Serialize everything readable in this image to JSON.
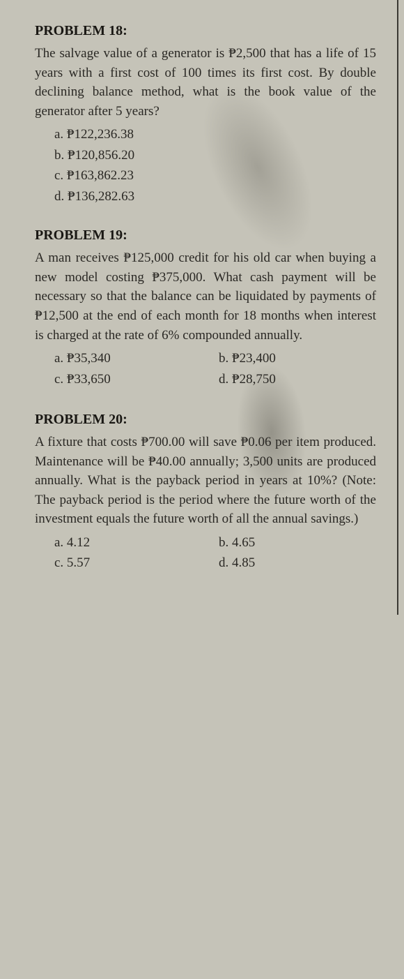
{
  "problems": [
    {
      "heading": "PROBLEM 18:",
      "text": "The salvage value of a generator is ₱2,500 that has a life of 15 years with a first cost of 100 times its first cost. By double declining balance method, what is the book value of the generator after 5 years?",
      "layout": "vertical",
      "options": [
        "a. ₱122,236.38",
        "b. ₱120,856.20",
        "c. ₱163,862.23",
        "d. ₱136,282.63"
      ]
    },
    {
      "heading": "PROBLEM 19:",
      "text": "A man receives ₱125,000 credit for his old car when buying a new model costing ₱375,000. What cash payment will be necessary so that the balance can be liquidated by payments of ₱12,500 at the end of each month for 18 months when interest is charged at the rate of 6% compounded annually.",
      "layout": "grid",
      "options": [
        "a. ₱35,340",
        "b. ₱23,400",
        "c. ₱33,650",
        "d. ₱28,750"
      ]
    },
    {
      "heading": "PROBLEM 20:",
      "text": "A fixture that costs ₱700.00 will save ₱0.06 per item produced. Maintenance will be ₱40.00 annually; 3,500 units are produced annually. What is the payback period in years at 10%? (Note: The payback period is the period where the future worth of the investment equals the future worth of all the annual savings.)",
      "layout": "grid",
      "options": [
        "a. 4.12",
        "b. 4.65",
        "c. 5.57",
        "d. 4.85"
      ]
    }
  ]
}
